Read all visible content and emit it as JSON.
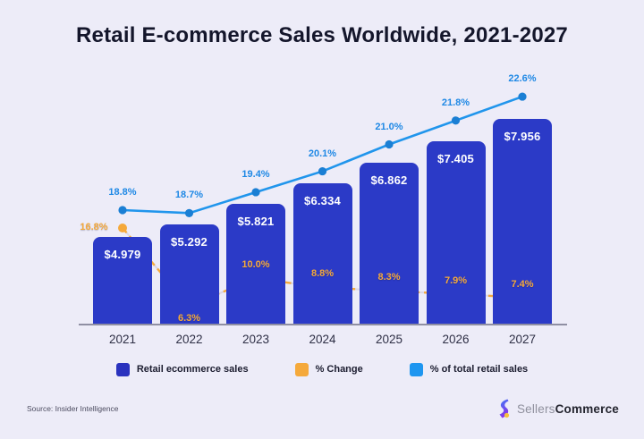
{
  "title": "Retail E-commerce Sales Worldwide, 2021-2027",
  "source": "Source: Insider Intelligence",
  "logo": {
    "gray": "Sellers",
    "bold": "Commerce"
  },
  "colors": {
    "background": "#EDECF8",
    "bar": "#2B3AC7",
    "line_blue": "#2095EC",
    "line_blue_marker": "#1B7FD4",
    "orange": "#F5A93B",
    "title_text": "#14162B"
  },
  "legend": {
    "items": [
      {
        "label": "Retail ecommerce sales",
        "color": "#2A32BE"
      },
      {
        "label": "% Change",
        "color": "#F5A93B"
      },
      {
        "label": "% of total retail sales",
        "color": "#1E96F0"
      }
    ]
  },
  "chart_data": {
    "type": "bar",
    "subtype": "bar-line-combo",
    "title": "Retail E-commerce Sales Worldwide, 2021-2027",
    "categories": [
      "2021",
      "2022",
      "2023",
      "2024",
      "2025",
      "2026",
      "2027"
    ],
    "series": [
      {
        "name": "Retail ecommerce sales",
        "type": "bar",
        "unit": "trillion USD",
        "color": "#2B3AC7",
        "values": [
          4.979,
          5.292,
          5.821,
          6.334,
          6.862,
          7.405,
          7.956
        ],
        "labels": [
          "$4.979",
          "$5.292",
          "$5.821",
          "$6.334",
          "$6.862",
          "$7.405",
          "$7.956"
        ]
      },
      {
        "name": "% Change",
        "type": "line",
        "style": "dashed",
        "color": "#F5A93B",
        "values": [
          16.8,
          6.3,
          10.0,
          8.8,
          8.3,
          7.9,
          7.4
        ],
        "labels": [
          "16.8%",
          "6.3%",
          "10.0%",
          "8.8%",
          "8.3%",
          "7.9%",
          "7.4%"
        ]
      },
      {
        "name": "% of total retail sales",
        "type": "line",
        "style": "solid",
        "color": "#2095EC",
        "values": [
          18.8,
          18.7,
          19.4,
          20.1,
          21.0,
          21.8,
          22.6
        ],
        "labels": [
          "18.8%",
          "18.7%",
          "19.4%",
          "20.1%",
          "21.0%",
          "21.8%",
          "22.6%"
        ]
      }
    ],
    "xlabel": "",
    "ylabel": "",
    "grid": false,
    "legend_position": "bottom"
  }
}
